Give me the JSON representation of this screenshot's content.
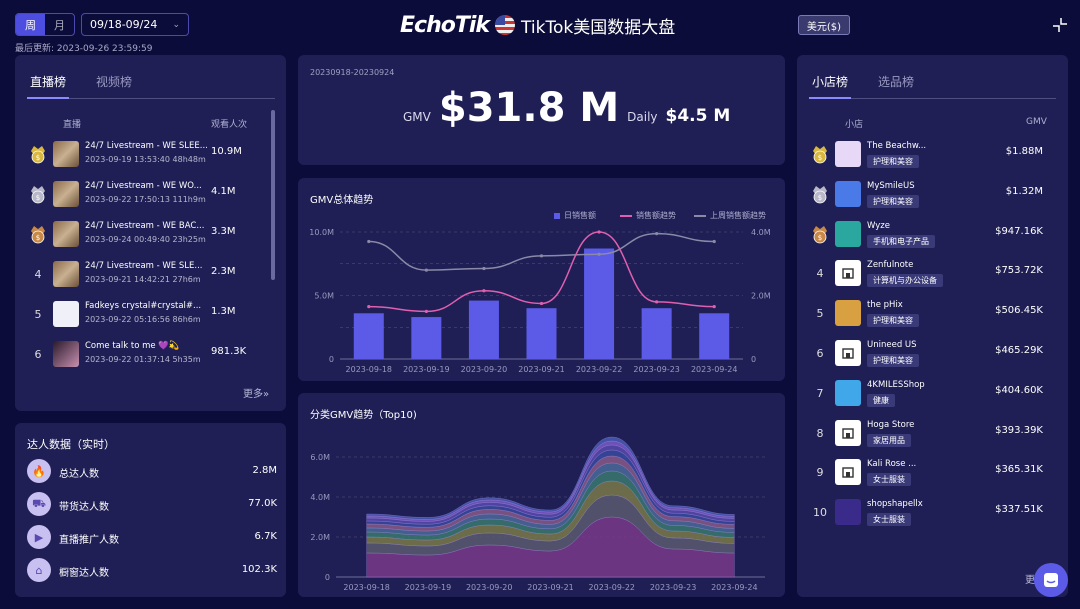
{
  "header": {
    "period_week": "周",
    "period_month": "月",
    "date_range": "09/18-09/24",
    "last_updated": "最后更新: 2023-09-26 23:59:59",
    "logo_a": "Echo",
    "logo_b": "Tik",
    "title": "TikTok美国数据大盘",
    "currency": "美元($)"
  },
  "live": {
    "tabs": [
      "直播榜",
      "视频榜"
    ],
    "col_name": "直播",
    "col_value": "观看人次",
    "rows": [
      {
        "rank": "1",
        "title": "24/7 Livestream - WE SLEE...",
        "sub": "2023-09-19 13:53:40 48h48m",
        "value": "10.9M",
        "medal": "gold"
      },
      {
        "rank": "2",
        "title": "24/7 Livestream - WE WO...",
        "sub": "2023-09-22 17:50:13 111h9m",
        "value": "4.1M",
        "medal": "silver"
      },
      {
        "rank": "3",
        "title": "24/7 Livestream - WE BAC...",
        "sub": "2023-09-24 00:49:40 23h25m",
        "value": "3.3M",
        "medal": "bronze"
      },
      {
        "rank": "4",
        "title": "24/7 Livestream - WE SLE...",
        "sub": "2023-09-21 14:42:21 27h6m",
        "value": "2.3M",
        "medal": ""
      },
      {
        "rank": "5",
        "title": "Fadkeys crystal#crystal#...",
        "sub": "2023-09-22 05:16:56 86h6m",
        "value": "1.3M",
        "medal": ""
      },
      {
        "rank": "6",
        "title": "Come talk to me 💜💫",
        "sub": "2023-09-22 01:37:14 5h35m",
        "value": "981.3K",
        "medal": ""
      }
    ],
    "more": "更多»"
  },
  "influencer": {
    "title": "达人数据（实时）",
    "items": [
      {
        "label": "总达人数",
        "value": "2.8M",
        "icon": "flame-icon"
      },
      {
        "label": "带货达人数",
        "value": "77.0K",
        "icon": "cart-person-icon"
      },
      {
        "label": "直播推广人数",
        "value": "6.7K",
        "icon": "live-camera-icon"
      },
      {
        "label": "橱窗达人数",
        "value": "102.3K",
        "icon": "storefront-icon"
      }
    ]
  },
  "summary": {
    "period": "20230918-20230924",
    "gmv_label": "GMV",
    "gmv_value": "$31.8 M",
    "daily_label": "Daily",
    "daily_value": "$4.5 M"
  },
  "gmv_trend": {
    "title": "GMV总体趋势",
    "legend": [
      "日销售额",
      "销售额趋势",
      "上周销售额趋势"
    ]
  },
  "category_trend": {
    "title": "分类GMV趋势（Top10)"
  },
  "shop": {
    "tabs": [
      "小店榜",
      "选品榜"
    ],
    "col_name": "小店",
    "col_value": "GMV",
    "rows": [
      {
        "rank": "1",
        "name": "The Beachw...",
        "tag": "护理和美容",
        "value": "$1.88M",
        "medal": "gold",
        "logo": "#e8d8f8"
      },
      {
        "rank": "2",
        "name": "MySmileUS",
        "tag": "护理和美容",
        "value": "$1.32M",
        "medal": "silver",
        "logo": "#4a7ae8"
      },
      {
        "rank": "3",
        "name": "Wyze",
        "tag": "手机和电子产品",
        "value": "$947.16K",
        "medal": "bronze",
        "logo": "#2aa8a0"
      },
      {
        "rank": "4",
        "name": "Zenfulnote",
        "tag": "计算机与办公设备",
        "value": "$753.72K",
        "medal": "",
        "logo": "#ffffff"
      },
      {
        "rank": "5",
        "name": "the pHix",
        "tag": "护理和美容",
        "value": "$506.45K",
        "medal": "",
        "logo": "#d8a040"
      },
      {
        "rank": "6",
        "name": "Unineed US",
        "tag": "护理和美容",
        "value": "$465.29K",
        "medal": "",
        "logo": "#ffffff"
      },
      {
        "rank": "7",
        "name": "4KMILESShop",
        "tag": "健康",
        "value": "$404.60K",
        "medal": "",
        "logo": "#40a8e8"
      },
      {
        "rank": "8",
        "name": "Hoga Store",
        "tag": "家居用品",
        "value": "$393.39K",
        "medal": "",
        "logo": "#ffffff"
      },
      {
        "rank": "9",
        "name": "Kali Rose ...",
        "tag": "女士服装",
        "value": "$365.31K",
        "medal": "",
        "logo": "#ffffff"
      },
      {
        "rank": "10",
        "name": "shopshapellx",
        "tag": "女士服装",
        "value": "$337.51K",
        "medal": "",
        "logo": "#3a2a8a"
      }
    ],
    "more": "更"
  },
  "colors": {
    "accent": "#5b5be8",
    "bar": "#5b5be8",
    "trend": "#e060b0",
    "last_week": "#8a8aa8"
  },
  "chart_data": [
    {
      "type": "bar",
      "title": "GMV总体趋势",
      "categories": [
        "2023-09-18",
        "2023-09-19",
        "2023-09-20",
        "2023-09-21",
        "2023-09-22",
        "2023-09-23",
        "2023-09-24"
      ],
      "ylim": [
        0,
        10000000
      ],
      "y2lim": [
        0,
        4000000
      ],
      "yticks": [
        "0",
        "5.0M",
        "10.0M"
      ],
      "y2ticks": [
        "0",
        "2.0M",
        "4.0M"
      ],
      "series": [
        {
          "name": "日销售额",
          "kind": "bar",
          "values": [
            3600000,
            3300000,
            4600000,
            4000000,
            8700000,
            4000000,
            3600000
          ]
        },
        {
          "name": "销售额趋势",
          "kind": "line",
          "axis": "y2",
          "values": [
            1650000,
            1500000,
            2150000,
            1750000,
            4000000,
            1800000,
            1650000
          ]
        },
        {
          "name": "上周销售额趋势",
          "kind": "line",
          "axis": "y2",
          "values": [
            3700000,
            2800000,
            2850000,
            3250000,
            3300000,
            3950000,
            3700000
          ]
        }
      ]
    },
    {
      "type": "area",
      "title": "分类GMV趋势（Top10)",
      "categories": [
        "2023-09-18",
        "2023-09-19",
        "2023-09-20",
        "2023-09-21",
        "2023-09-22",
        "2023-09-23",
        "2023-09-24"
      ],
      "ylim": [
        0,
        7000000
      ],
      "yticks": [
        "0",
        "2.0M",
        "4.0M",
        "6.0M"
      ],
      "series": [
        {
          "values": [
            1200000,
            1100000,
            1600000,
            1300000,
            3000000,
            1400000,
            1200000
          ],
          "color": "#7a3a8a"
        },
        {
          "values": [
            500000,
            450000,
            600000,
            500000,
            1100000,
            550000,
            480000
          ],
          "color": "#5a5a70"
        },
        {
          "values": [
            300000,
            300000,
            400000,
            350000,
            700000,
            350000,
            300000
          ],
          "color": "#7a7a4a"
        },
        {
          "values": [
            250000,
            250000,
            300000,
            260000,
            500000,
            280000,
            250000
          ],
          "color": "#3a7a70"
        },
        {
          "values": [
            200000,
            200000,
            250000,
            220000,
            400000,
            230000,
            200000
          ],
          "color": "#4a6a9a"
        },
        {
          "values": [
            200000,
            190000,
            230000,
            200000,
            350000,
            210000,
            200000
          ],
          "color": "#8a5a8a"
        },
        {
          "values": [
            150000,
            150000,
            180000,
            160000,
            300000,
            170000,
            150000
          ],
          "color": "#3a4aa0"
        },
        {
          "values": [
            150000,
            140000,
            170000,
            150000,
            250000,
            160000,
            150000
          ],
          "color": "#5a4ab0"
        },
        {
          "values": [
            100000,
            100000,
            120000,
            110000,
            200000,
            110000,
            100000
          ],
          "color": "#7a5ac8"
        },
        {
          "values": [
            100000,
            100000,
            110000,
            100000,
            200000,
            100000,
            100000
          ],
          "color": "#4a5ab8"
        }
      ]
    }
  ]
}
